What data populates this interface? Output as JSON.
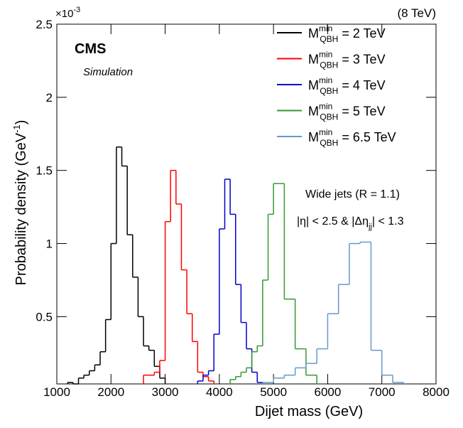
{
  "chart_data": {
    "type": "step-histogram",
    "energy_label": "(8 TeV)",
    "experiment": "CMS",
    "subtitle": "Simulation",
    "xlabel": "Dijet mass (GeV)",
    "ylabel": {
      "text": "Probability density (GeV",
      "sup": "-1",
      "end": ")"
    },
    "y_multiplier": {
      "text": "×10",
      "sup": "-3"
    },
    "legend_symbol": {
      "base": "M",
      "sup": "min",
      "sub": "QBH",
      "eq": "="
    },
    "annotations": [
      {
        "text": "Wide jets (R = 1.1)"
      },
      {
        "text": "|η| < 2.5 & |Δη",
        "sub": "jj",
        "end": "| < 1.3"
      }
    ],
    "xlim": [
      1000,
      8000
    ],
    "xticks": [
      1000,
      2000,
      3000,
      4000,
      5000,
      6000,
      7000,
      8000
    ],
    "ylim": [
      0.04,
      2.5
    ],
    "yticks": [
      0.5,
      1,
      1.5,
      2,
      2.5
    ],
    "series": [
      {
        "name": "2 TeV",
        "color": "#000000",
        "bins": [
          1200,
          1300,
          1400,
          1500,
          1600,
          1700,
          1800,
          1900,
          2000,
          2100,
          2200,
          2300,
          2400,
          2500,
          2600,
          2700,
          2800,
          2900,
          3000
        ],
        "values": [
          0.05,
          0.04,
          0.08,
          0.1,
          0.13,
          0.17,
          0.26,
          0.48,
          1.0,
          1.66,
          1.53,
          1.06,
          0.77,
          0.5,
          0.3,
          0.27,
          0.16,
          0.08
        ]
      },
      {
        "name": "3 TeV",
        "color": "#ff0000",
        "bins": [
          2600,
          2700,
          2800,
          2900,
          3000,
          3100,
          3200,
          3300,
          3400,
          3500,
          3600,
          3700,
          3800,
          3900
        ],
        "values": [
          0.1,
          0.1,
          0.12,
          0.2,
          1.15,
          1.5,
          1.27,
          0.82,
          0.52,
          0.33,
          0.12,
          0.09,
          0.06
        ]
      },
      {
        "name": "4 TeV",
        "color": "#0000cc",
        "bins": [
          3600,
          3700,
          3800,
          3900,
          4000,
          4100,
          4200,
          4300,
          4400,
          4500,
          4600,
          4700,
          4800
        ],
        "values": [
          0.06,
          0.1,
          0.13,
          0.38,
          1.1,
          1.44,
          1.2,
          0.72,
          0.46,
          0.28,
          0.12,
          0.05
        ]
      },
      {
        "name": "5 TeV",
        "color": "#339933",
        "bins": [
          4200,
          4300,
          4400,
          4500,
          4600,
          4700,
          4800,
          4900,
          5000,
          5100,
          5200,
          5300,
          5400,
          5500,
          5600,
          5700,
          5800
        ],
        "values": [
          0.07,
          0.09,
          0.12,
          0.15,
          0.26,
          0.3,
          0.75,
          1.2,
          1.41,
          1.41,
          0.62,
          0.62,
          0.28,
          0.28,
          0.1,
          0.1
        ]
      },
      {
        "name": "6.5 TeV",
        "color": "#6699cc",
        "bins": [
          4800,
          5000,
          5200,
          5400,
          5600,
          5800,
          6000,
          6200,
          6400,
          6600,
          6800,
          7000,
          7200,
          7400
        ],
        "values": [
          0.05,
          0.08,
          0.1,
          0.15,
          0.18,
          0.28,
          0.52,
          0.72,
          1.0,
          1.01,
          0.27,
          0.1,
          0.05
        ]
      }
    ]
  }
}
